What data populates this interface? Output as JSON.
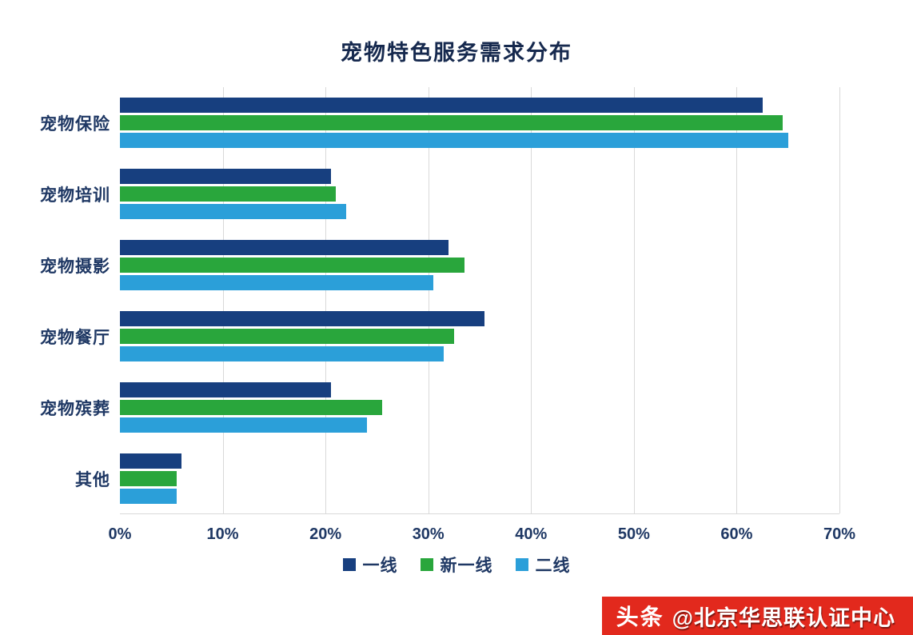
{
  "title": "宠物特色服务需求分布",
  "chart_data": {
    "type": "bar",
    "orientation": "horizontal",
    "title": "宠物特色服务需求分布",
    "categories": [
      "宠物保险",
      "宠物培训",
      "宠物摄影",
      "宠物餐厅",
      "宠物殡葬",
      "其他"
    ],
    "series": [
      {
        "name": "一线",
        "color": "#173f7f",
        "values": [
          62.5,
          20.5,
          32.0,
          35.5,
          20.5,
          6.0
        ]
      },
      {
        "name": "新一线",
        "color": "#29a63c",
        "values": [
          64.5,
          21.0,
          33.5,
          32.5,
          25.5,
          5.5
        ]
      },
      {
        "name": "二线",
        "color": "#2b9fd9",
        "values": [
          65.0,
          22.0,
          30.5,
          31.5,
          24.0,
          5.5
        ]
      }
    ],
    "xlabel": "",
    "ylabel": "",
    "xlim": [
      0,
      70
    ],
    "x_ticks": [
      "0%",
      "10%",
      "20%",
      "30%",
      "40%",
      "50%",
      "60%",
      "70%"
    ],
    "grid": true,
    "legend_position": "bottom",
    "text_color": "#1f3864",
    "gridline_color": "#d9d9d9"
  },
  "watermark": {
    "brand": "头条",
    "text": "@北京华思联认证中心",
    "bg_color": "#e2291d"
  }
}
